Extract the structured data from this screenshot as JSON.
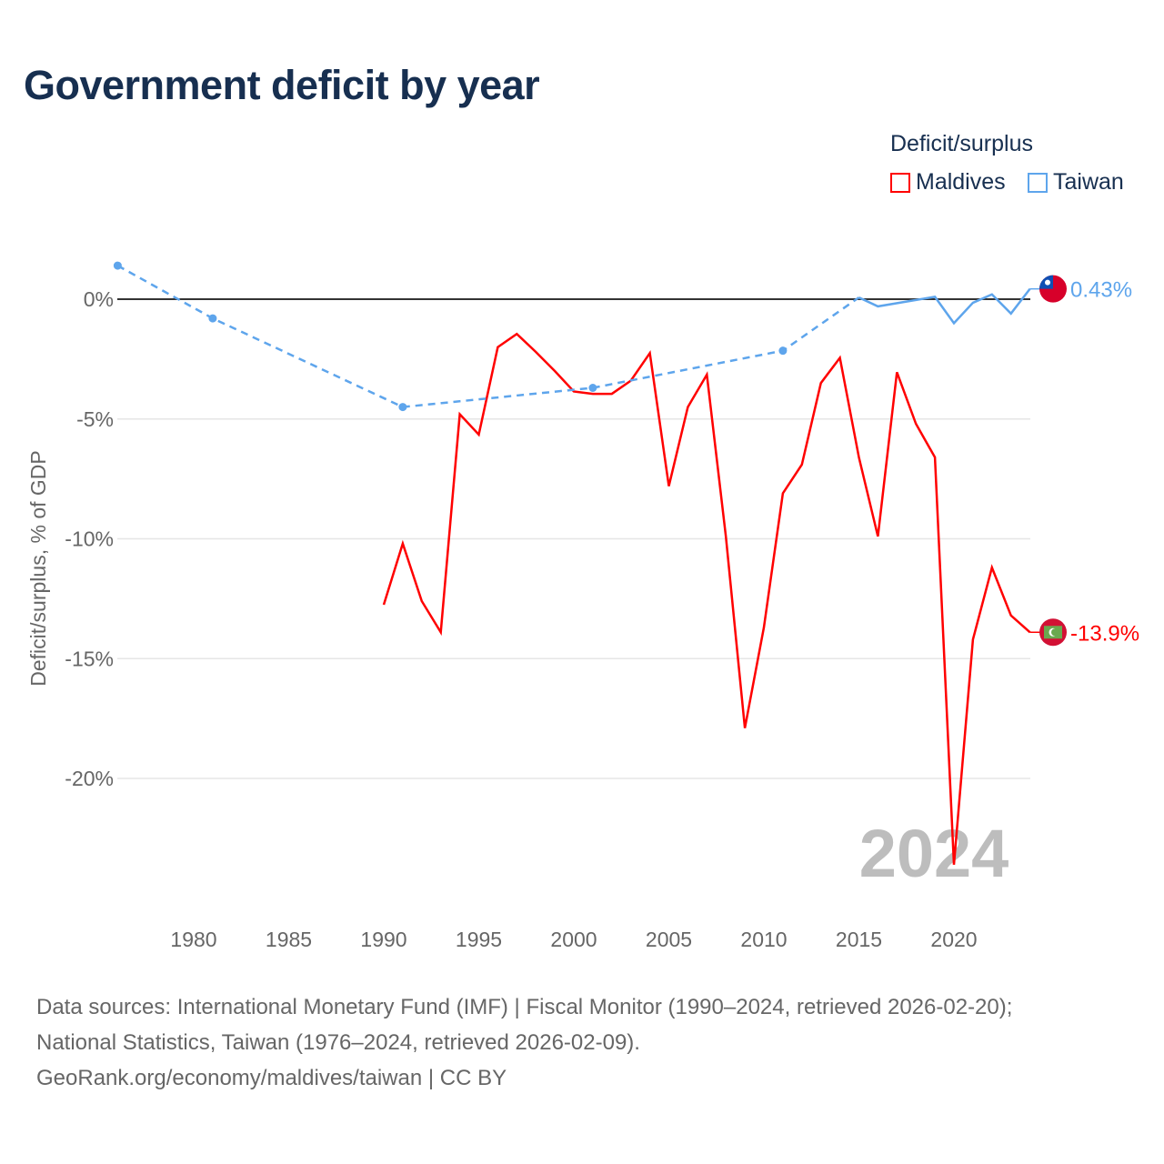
{
  "title": "Government deficit by year",
  "legend": {
    "title": "Deficit/surplus",
    "items": [
      "Maldives",
      "Taiwan"
    ]
  },
  "footer": [
    "Data sources: International Monetary Fund (IMF) | Fiscal Monitor (1990–2024, retrieved 2026-02-20);",
    "National Statistics, Taiwan (1976–2024, retrieved 2026-02-09).",
    "GeoRank.org/economy/maldives/taiwan | CC BY"
  ],
  "chart_data": {
    "type": "line",
    "title": "Government deficit by year",
    "xlabel": "",
    "ylabel": "Deficit/surplus, % of GDP",
    "xlim": [
      1976,
      2024
    ],
    "ylim": [
      -24,
      2
    ],
    "x_ticks": [
      1980,
      1985,
      1990,
      1995,
      2000,
      2005,
      2010,
      2015,
      2020
    ],
    "y_ticks": [
      {
        "v": 0,
        "label": "0%"
      },
      {
        "v": -5,
        "label": "-5%"
      },
      {
        "v": -10,
        "label": "-10%"
      },
      {
        "v": -15,
        "label": "-15%"
      },
      {
        "v": -20,
        "label": "-20%"
      }
    ],
    "year_watermark": "2024",
    "series": [
      {
        "name": "Maldives",
        "color": "#ff0000",
        "end_label": "-13.9%",
        "x": [
          1990,
          1991,
          1992,
          1993,
          1994,
          1995,
          1996,
          1997,
          1998,
          1999,
          2000,
          2001,
          2002,
          2003,
          2004,
          2005,
          2006,
          2007,
          2008,
          2009,
          2010,
          2011,
          2012,
          2013,
          2014,
          2015,
          2016,
          2017,
          2018,
          2019,
          2020,
          2021,
          2022,
          2023,
          2024
        ],
        "y": [
          -12.75,
          -10.2,
          -12.6,
          -13.9,
          -4.8,
          -5.65,
          -2.0,
          -1.45,
          -2.2,
          -3.0,
          -3.85,
          -3.95,
          -3.95,
          -3.4,
          -2.25,
          -7.8,
          -4.5,
          -3.15,
          -9.9,
          -17.9,
          -13.7,
          -8.1,
          -6.9,
          -3.5,
          -2.45,
          -6.6,
          -9.9,
          -3.05,
          -5.2,
          -6.6,
          -23.6,
          -14.2,
          -11.2,
          -13.2,
          -13.9
        ]
      },
      {
        "name": "Taiwan",
        "color": "#5ea5ec",
        "end_label": "0.43%",
        "x": [
          1976,
          1981,
          1991,
          2001,
          2011,
          2015,
          2016,
          2019,
          2020,
          2021,
          2022,
          2023,
          2024
        ],
        "y": [
          1.4,
          -0.8,
          -4.5,
          -3.7,
          -2.15,
          0.07,
          -0.3,
          0.1,
          -1.0,
          -0.15,
          0.2,
          -0.6,
          0.43
        ],
        "sparse_until": 2015
      }
    ]
  }
}
